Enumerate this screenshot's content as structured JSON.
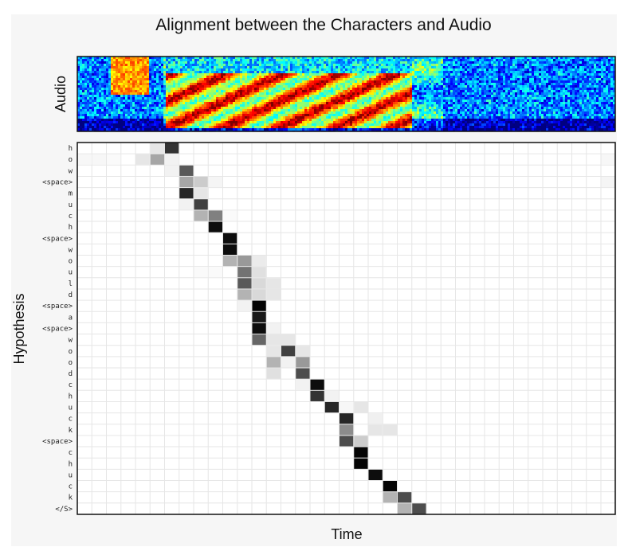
{
  "chart_data": {
    "type": "heatmap",
    "title": "Alignment between the Characters and Audio",
    "audio_panel_label": "Audio",
    "xlabel": "Time",
    "ylabel": "Hypothesis",
    "y_categories": [
      "h",
      "o",
      "w",
      "<space>",
      "m",
      "u",
      "c",
      "h",
      "<space>",
      "w",
      "o",
      "u",
      "l",
      "d",
      "<space>",
      "a",
      "<space>",
      "w",
      "o",
      "o",
      "d",
      "c",
      "h",
      "u",
      "c",
      "k",
      "<space>",
      "c",
      "h",
      "u",
      "c",
      "k",
      "</S>"
    ],
    "n_time_steps": 37,
    "colormap": "grayscale (white = 0, black = 1)",
    "grid": true,
    "cells": [
      [
        0,
        6,
        0.8
      ],
      [
        0,
        5,
        0.1
      ],
      [
        1,
        5,
        0.35
      ],
      [
        1,
        4,
        0.1
      ],
      [
        1,
        6,
        0.05
      ],
      [
        1,
        0,
        0.03
      ],
      [
        1,
        1,
        0.03
      ],
      [
        1,
        2,
        0.02
      ],
      [
        1,
        36,
        0.03
      ],
      [
        2,
        7,
        0.65
      ],
      [
        2,
        6,
        0.05
      ],
      [
        3,
        7,
        0.35
      ],
      [
        3,
        8,
        0.2
      ],
      [
        3,
        9,
        0.04
      ],
      [
        3,
        36,
        0.04
      ],
      [
        4,
        7,
        0.85
      ],
      [
        4,
        8,
        0.1
      ],
      [
        5,
        8,
        0.75
      ],
      [
        5,
        7,
        0.05
      ],
      [
        6,
        8,
        0.3
      ],
      [
        6,
        9,
        0.5
      ],
      [
        6,
        10,
        0.02
      ],
      [
        7,
        9,
        0.95
      ],
      [
        8,
        10,
        0.95
      ],
      [
        9,
        10,
        0.95
      ],
      [
        10,
        10,
        0.3
      ],
      [
        10,
        11,
        0.4
      ],
      [
        10,
        12,
        0.08
      ],
      [
        11,
        11,
        0.55
      ],
      [
        11,
        12,
        0.12
      ],
      [
        11,
        8,
        0.02
      ],
      [
        11,
        9,
        0.02
      ],
      [
        12,
        11,
        0.65
      ],
      [
        12,
        12,
        0.15
      ],
      [
        12,
        13,
        0.1
      ],
      [
        13,
        11,
        0.3
      ],
      [
        13,
        12,
        0.15
      ],
      [
        13,
        13,
        0.1
      ],
      [
        14,
        12,
        0.98
      ],
      [
        14,
        11,
        0.05
      ],
      [
        15,
        12,
        0.9
      ],
      [
        16,
        12,
        0.95
      ],
      [
        16,
        13,
        0.05
      ],
      [
        17,
        12,
        0.6
      ],
      [
        17,
        13,
        0.1
      ],
      [
        17,
        14,
        0.1
      ],
      [
        18,
        13,
        0.1
      ],
      [
        18,
        14,
        0.75
      ],
      [
        18,
        15,
        0.1
      ],
      [
        19,
        13,
        0.3
      ],
      [
        19,
        15,
        0.4
      ],
      [
        19,
        14,
        0.05
      ],
      [
        20,
        13,
        0.12
      ],
      [
        20,
        15,
        0.7
      ],
      [
        21,
        16,
        0.95
      ],
      [
        21,
        15,
        0.05
      ],
      [
        22,
        16,
        0.8
      ],
      [
        22,
        17,
        0.05
      ],
      [
        23,
        17,
        0.85
      ],
      [
        23,
        19,
        0.1
      ],
      [
        23,
        18,
        0.03
      ],
      [
        24,
        18,
        0.85
      ],
      [
        24,
        20,
        0.06
      ],
      [
        25,
        18,
        0.45
      ],
      [
        25,
        20,
        0.1
      ],
      [
        25,
        21,
        0.1
      ],
      [
        26,
        18,
        0.7
      ],
      [
        26,
        19,
        0.2
      ],
      [
        27,
        19,
        0.98
      ],
      [
        28,
        19,
        0.98
      ],
      [
        29,
        20,
        0.95
      ],
      [
        30,
        21,
        0.98
      ],
      [
        31,
        21,
        0.3
      ],
      [
        31,
        22,
        0.7
      ],
      [
        32,
        22,
        0.3
      ],
      [
        32,
        23,
        0.7
      ]
    ]
  },
  "spectrogram": {
    "colormap": "jet",
    "colors": {
      "background": "#12a6ee",
      "low": "#1146c8",
      "mid": "#7ff07a",
      "high": "#f3ea2f",
      "peak": "#d51e1e"
    }
  }
}
